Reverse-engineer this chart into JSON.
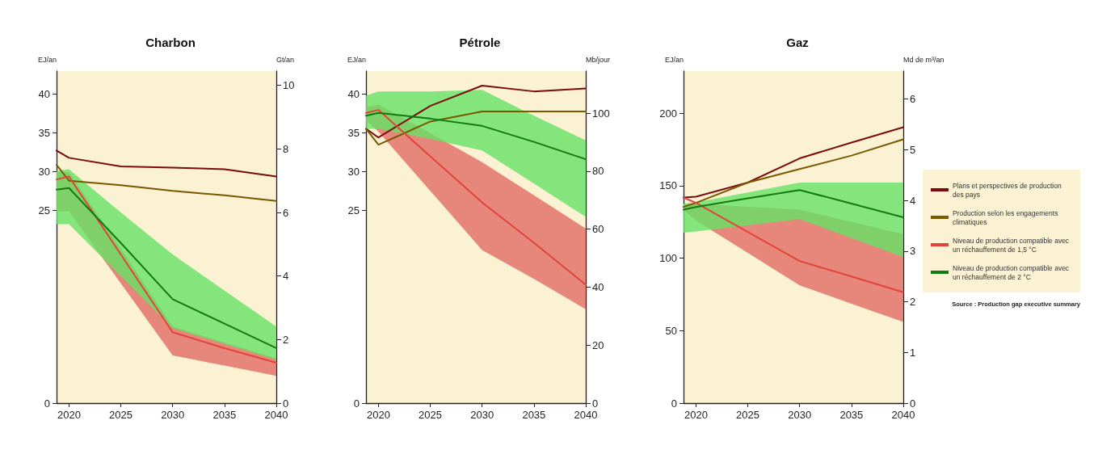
{
  "chart_data": [
    {
      "type": "line",
      "title": "Charbon",
      "ylabel": "EJ/an",
      "y2label": "Gt/an",
      "marker": "none",
      "line_style": "solid",
      "grid": false,
      "x": [
        2018.8,
        2020,
        2025,
        2030,
        2035,
        2040
      ],
      "xlim": [
        2018.8,
        2040
      ],
      "xticks": [
        2020,
        2025,
        2030,
        2035,
        2040
      ],
      "ylim": [
        0,
        43
      ],
      "yticks": [
        0,
        25,
        30,
        35,
        40
      ],
      "y2lim": [
        0,
        10.45
      ],
      "y2ticks": [
        0,
        2,
        4,
        6,
        8,
        10
      ],
      "series": [
        {
          "axis": "y2",
          "color": "#7b0c0c",
          "values": [
            7.95,
            7.72,
            7.45,
            7.41,
            7.36,
            7.13
          ]
        },
        {
          "axis": "y2",
          "color": "#7a5800",
          "values": [
            7.5,
            7.0,
            6.86,
            6.68,
            6.54,
            6.36
          ]
        },
        {
          "axis": "y2",
          "color": "#e0443b",
          "values": [
            7.04,
            7.13,
            4.68,
            2.23,
            1.73,
            1.27
          ],
          "lower": [
            6.04,
            6.04,
            3.77,
            1.5,
            1.18,
            0.86
          ],
          "upper": [
            7.27,
            7.27,
            4.86,
            2.41,
            1.91,
            1.41
          ]
        },
        {
          "axis": "y2",
          "color": "#117a11",
          "values": [
            6.72,
            6.77,
            5.04,
            3.27,
            2.5,
            1.73
          ],
          "lower": [
            5.63,
            5.63,
            4.0,
            2.36,
            1.86,
            1.36
          ],
          "upper": [
            7.31,
            7.36,
            6.0,
            4.68,
            3.54,
            2.41
          ]
        }
      ]
    },
    {
      "type": "line",
      "title": "Pétrole",
      "ylabel": "EJ/an",
      "y2label": "Mb/jour",
      "marker": "none",
      "line_style": "solid",
      "grid": false,
      "x": [
        2018.8,
        2020,
        2025,
        2030,
        2035,
        2040
      ],
      "xlim": [
        2018.8,
        2040
      ],
      "xticks": [
        2020,
        2025,
        2030,
        2035,
        2040
      ],
      "ylim": [
        0,
        43
      ],
      "yticks": [
        0,
        25,
        30,
        35,
        40
      ],
      "y2lim": [
        0,
        114.5
      ],
      "y2ticks": [
        0,
        20,
        40,
        60,
        80,
        100
      ],
      "series": [
        {
          "axis": "y2",
          "color": "#7b0c0c",
          "values": [
            94.6,
            91.6,
            102.5,
            109.5,
            107.5,
            108.5
          ]
        },
        {
          "axis": "y2",
          "color": "#7a5800",
          "values": [
            94.6,
            89.1,
            97.1,
            100.6,
            100.6,
            100.6
          ]
        },
        {
          "axis": "y2",
          "color": "#e0443b",
          "values": [
            100.1,
            101.1,
            85.1,
            69.2,
            55.3,
            40.8
          ],
          "lower": [
            97.6,
            93.6,
            73.2,
            52.8,
            42.8,
            32.4
          ],
          "upper": [
            102.0,
            103.0,
            93.1,
            83.1,
            71.7,
            60.2
          ]
        },
        {
          "axis": "y2",
          "color": "#117a11",
          "values": [
            99.1,
            100.1,
            98.1,
            95.6,
            90.1,
            84.1
          ],
          "lower": [
            94.6,
            94.6,
            91.1,
            87.1,
            75.7,
            64.2
          ],
          "upper": [
            106.0,
            107.5,
            107.5,
            108.0,
            99.1,
            90.6
          ]
        }
      ]
    },
    {
      "type": "line",
      "title": "Gaz",
      "ylabel": "EJ/an",
      "y2label": "Md de m³/an",
      "marker": "none",
      "line_style": "solid",
      "grid": false,
      "legend": "right",
      "x": [
        2018.8,
        2020,
        2025,
        2030,
        2035,
        2040
      ],
      "xlim": [
        2018.8,
        2040
      ],
      "xticks": [
        2020,
        2025,
        2030,
        2035,
        2040
      ],
      "ylim": [
        0,
        229
      ],
      "yticks": [
        0,
        50,
        100,
        150,
        200
      ],
      "y2lim": [
        0,
        6.55
      ],
      "y2ticks": [
        0,
        1,
        2,
        3,
        4,
        5,
        6
      ],
      "annotations": [
        "Source : Production gap executive summary"
      ],
      "series": [
        {
          "name": "Plans et perspectives de production des pays",
          "color": "#7b0c0c",
          "values": [
            141.8,
            142.4,
            152.1,
            168.8,
            179.7,
            190.3
          ]
        },
        {
          "name": "Production selon les engagements climatiques",
          "color": "#7a5800",
          "values": [
            135.3,
            138.1,
            152.1,
            161.4,
            170.7,
            181.9
          ]
        },
        {
          "name": "Niveau de production compatible avec un réchauffement de 1,5 °C",
          "color": "#e0443b",
          "values": [
            141.8,
            138.1,
            118.0,
            98.0,
            87.3,
            76.5
          ],
          "lower": [
            133.4,
            125.9,
            103.6,
            81.2,
            68.6,
            56.0
          ],
          "upper": [
            137.1,
            137.5,
            135.4,
            133.4,
            125.0,
            116.6
          ]
        },
        {
          "name": "Niveau de production compatible avec un réchauffement de 2 °C",
          "color": "#117a11",
          "values": [
            133.4,
            135.3,
            141.2,
            147.0,
            137.6,
            128.2
          ],
          "lower": [
            117.5,
            118.4,
            122.6,
            126.9,
            113.8,
            100.7
          ],
          "upper": [
            137.5,
            138.5,
            145.3,
            152.1,
            152.1,
            152.1
          ]
        }
      ]
    }
  ]
}
